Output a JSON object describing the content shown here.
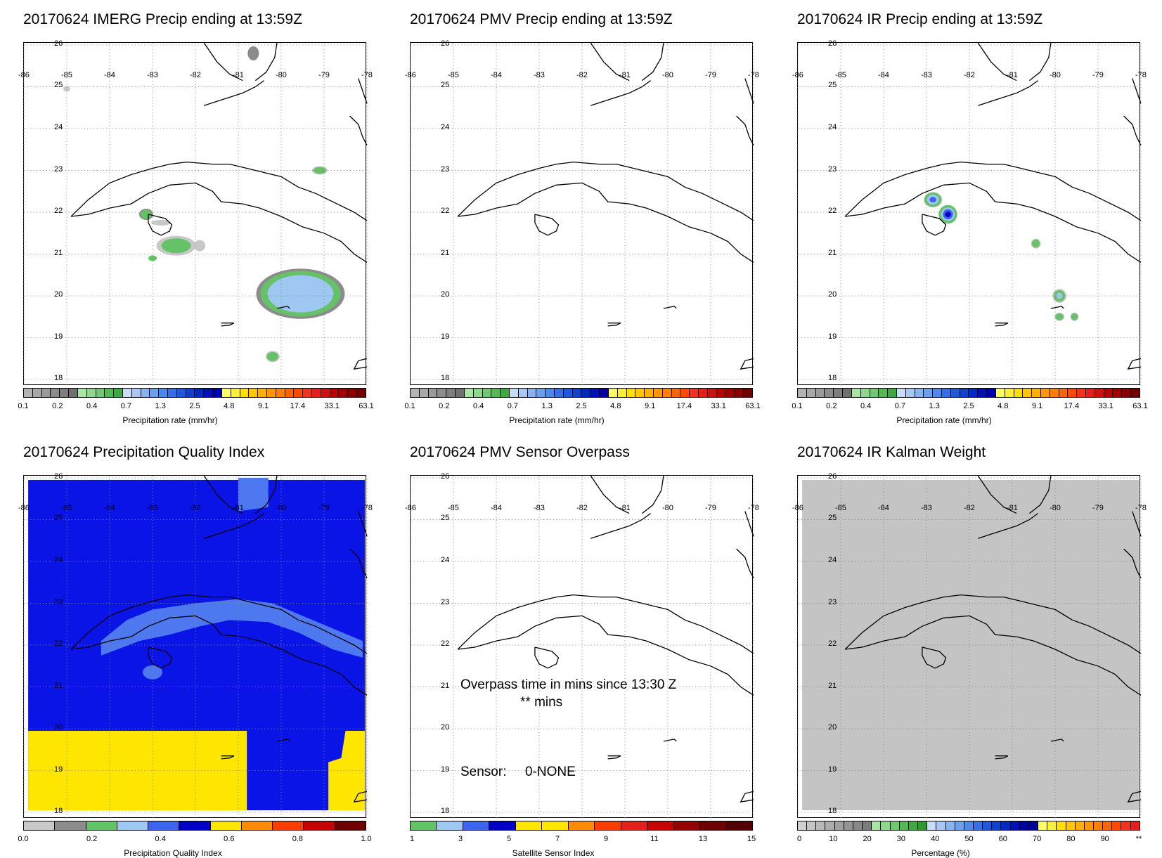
{
  "panels": [
    {
      "title": "20170624 IMERG Precip ending at 13:59Z",
      "colorbar": {
        "caption": "Precipitation rate (mm/hr)",
        "labels": [
          "0.1",
          "0.2",
          "0.4",
          "0.7",
          "1.3",
          "2.5",
          "4.8",
          "9.1",
          "17.4",
          "33.1",
          "63.1"
        ]
      }
    },
    {
      "title": "20170624 PMV Precip ending at 13:59Z",
      "colorbar": {
        "caption": "Precipitation rate (mm/hr)",
        "labels": [
          "0.1",
          "0.2",
          "0.4",
          "0.7",
          "1.3",
          "2.5",
          "4.8",
          "9.1",
          "17.4",
          "33.1",
          "63.1"
        ]
      }
    },
    {
      "title": "20170624 IR Precip ending at 13:59Z",
      "colorbar": {
        "caption": "Precipitation rate (mm/hr)",
        "labels": [
          "0.1",
          "0.2",
          "0.4",
          "0.7",
          "1.3",
          "2.5",
          "4.8",
          "9.1",
          "17.4",
          "33.1",
          "63.1"
        ]
      }
    },
    {
      "title": "20170624 Precipitation Quality Index",
      "colorbar": {
        "caption": "Precipitation Quality Index",
        "labels": [
          "0.0",
          "0.2",
          "0.4",
          "0.6",
          "0.8",
          "1.0"
        ]
      }
    },
    {
      "title": "20170624 PMV Sensor Overpass",
      "colorbar": {
        "caption": "Satellite Sensor Index",
        "labels": [
          "1",
          "3",
          "5",
          "7",
          "9",
          "11",
          "13",
          "15"
        ]
      },
      "overpass_line1": "Overpass time in mins since 13:30 Z",
      "overpass_line2": "** mins",
      "sensor_label": "Sensor:",
      "sensor_value": "0-NONE"
    },
    {
      "title": "20170624 IR Kalman Weight",
      "colorbar": {
        "caption": "Percentage (%)",
        "labels": [
          "0",
          "10",
          "20",
          "30",
          "40",
          "50",
          "60",
          "70",
          "80",
          "90",
          "**"
        ]
      }
    }
  ],
  "lat_labels": [
    "26",
    "25",
    "24",
    "23",
    "22",
    "21",
    "20",
    "19",
    "18"
  ],
  "lon_labels": [
    "-86",
    "-85",
    "-84",
    "-83",
    "-82",
    "-81",
    "-80",
    "-79",
    "-78"
  ],
  "colors": {
    "gray_light": "#c8c8c8",
    "gray_dark": "#8c8c8c",
    "green": "#66c266",
    "light_blue": "#9ec7f2",
    "blue": "#3c64f0",
    "dark_blue": "#0000c8",
    "yellow": "#ffe600",
    "orange": "#ff8c00",
    "red": "#e61e1e",
    "dark_red": "#780000",
    "qi_blue": "#0a14e6",
    "qi_light_blue": "#4d78f0",
    "qi_yellow": "#ffe600",
    "kalman_gray": "#c4c4c4"
  }
}
